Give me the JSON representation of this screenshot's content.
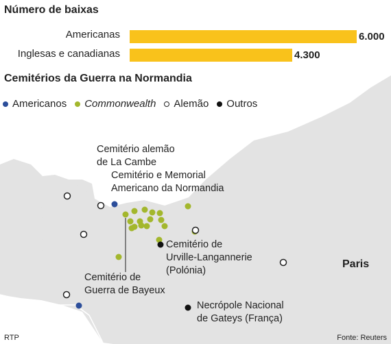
{
  "chart_data": {
    "type": "bar",
    "title": "Número de baixas",
    "categories": [
      "Americanas",
      "Inglesas e canadianas"
    ],
    "values": [
      6000,
      4300
    ],
    "value_labels": [
      "6.000",
      "4.300"
    ],
    "xlim": [
      0,
      6000
    ],
    "bar_color": "#f9c21b"
  },
  "map": {
    "title": "Cemitérios da Guerra na Normandia",
    "legend": [
      {
        "label": "Americanos",
        "color": "#2c4e9a",
        "style": "filled"
      },
      {
        "label": "Commonwealth",
        "color": "#a3b72d",
        "style": "filled",
        "italic": true
      },
      {
        "label": "Alemão",
        "color": "#222222",
        "style": "hollow"
      },
      {
        "label": "Outros",
        "color": "#111111",
        "style": "filled"
      }
    ],
    "labels": {
      "la_cambe": "Cemitério alemão\nde La Cambe",
      "american": "Cemitério e Memorial\nAmericano da Normandia",
      "urville": "Cemitério de\nUrville-Langannerie\n(Polónia)",
      "bayeux": "Cemitério de\nGuerra de Bayeux",
      "gateys": "Necrópole Nacional\nde Gateys (França)",
      "paris": "Paris"
    },
    "land_color": "#e3e3e3",
    "sea_color": "#ffffff",
    "commonwealth_color": "#a3b72d",
    "american_color": "#2c4e9a"
  },
  "footer": {
    "left": "RTP",
    "right": "Fonte: Reuters"
  }
}
